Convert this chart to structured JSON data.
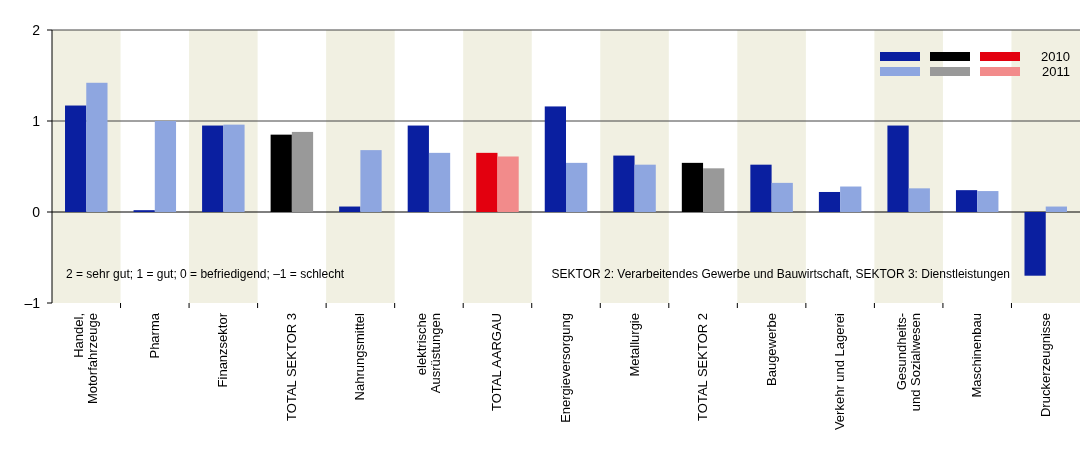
{
  "chart_data": {
    "type": "bar",
    "categories": [
      "Handel,\nMotorfahrzeuge",
      "Pharma",
      "Finanzsektor",
      "TOTAL SEKTOR 3",
      "Nahrungsmittel",
      "elektrische\nAusrüstungen",
      "TOTAL AARGAU",
      "Energieversorgung",
      "Metallurgie",
      "TOTAL SEKTOR 2",
      "Baugewerbe",
      "Verkehr und Lagerei",
      "Gesundheits-\nund Sozialwesen",
      "Maschinenbau",
      "Druckerzeugnisse"
    ],
    "series": [
      {
        "name": "2010",
        "colors": [
          "#0a1fa0",
          "#0a1fa0",
          "#0a1fa0",
          "#000000",
          "#0a1fa0",
          "#0a1fa0",
          "#e3000f",
          "#0a1fa0",
          "#0a1fa0",
          "#000000",
          "#0a1fa0",
          "#0a1fa0",
          "#0a1fa0",
          "#0a1fa0",
          "#0a1fa0"
        ],
        "values": [
          1.17,
          0.02,
          0.95,
          0.85,
          0.06,
          0.95,
          0.65,
          1.16,
          0.62,
          0.54,
          0.52,
          0.22,
          0.95,
          0.24,
          -0.7
        ]
      },
      {
        "name": "2011",
        "colors": [
          "#8ea6e0",
          "#8ea6e0",
          "#8ea6e0",
          "#999999",
          "#8ea6e0",
          "#8ea6e0",
          "#f28b8b",
          "#8ea6e0",
          "#8ea6e0",
          "#999999",
          "#8ea6e0",
          "#8ea6e0",
          "#8ea6e0",
          "#8ea6e0",
          "#8ea6e0"
        ],
        "values": [
          1.42,
          1.0,
          0.96,
          0.88,
          0.68,
          0.65,
          0.61,
          0.54,
          0.52,
          0.48,
          0.32,
          0.28,
          0.26,
          0.23,
          0.06
        ]
      }
    ],
    "ylim": [
      -1,
      2
    ],
    "yticks": [
      {
        "value": -1,
        "label": "–1"
      },
      0,
      1,
      2
    ],
    "legend": "top right",
    "ref_lines": [
      {
        "axis": "y",
        "value": 1,
        "color": "#444444"
      }
    ],
    "bands": [
      {
        "axis": "x",
        "from": "Handel,\nMotorfahrzeuge",
        "to": "Handel,\nMotorfahrzeuge",
        "color": "#f1f0e2"
      },
      {
        "axis": "x",
        "from": "Finanzsektor",
        "to": "Finanzsektor",
        "color": "#f1f0e2"
      },
      {
        "axis": "x",
        "from": "Nahrungsmittel",
        "to": "Nahrungsmittel",
        "color": "#f1f0e2"
      },
      {
        "axis": "x",
        "from": "TOTAL AARGAU",
        "to": "TOTAL AARGAU",
        "color": "#f1f0e2"
      },
      {
        "axis": "x",
        "from": "Metallurgie",
        "to": "Metallurgie",
        "color": "#f1f0e2"
      },
      {
        "axis": "x",
        "from": "Baugewerbe",
        "to": "Baugewerbe",
        "color": "#f1f0e2"
      },
      {
        "axis": "x",
        "from": "Gesundheits-\nund Sozialwesen",
        "to": "Gesundheits-\nund Sozialwesen",
        "color": "#f1f0e2"
      },
      {
        "axis": "x",
        "from": "Druckerzeugnisse",
        "to": "Druckerzeugnisse",
        "color": "#f1f0e2"
      }
    ],
    "annotations": [
      "2 = sehr gut; 1 = gut; 0 = befriedigend; –1 = schlecht",
      "SEKTOR 2: Verarbeitendes Gewerbe und Bauwirtschaft, SEKTOR 3: Dienstleistungen"
    ]
  }
}
